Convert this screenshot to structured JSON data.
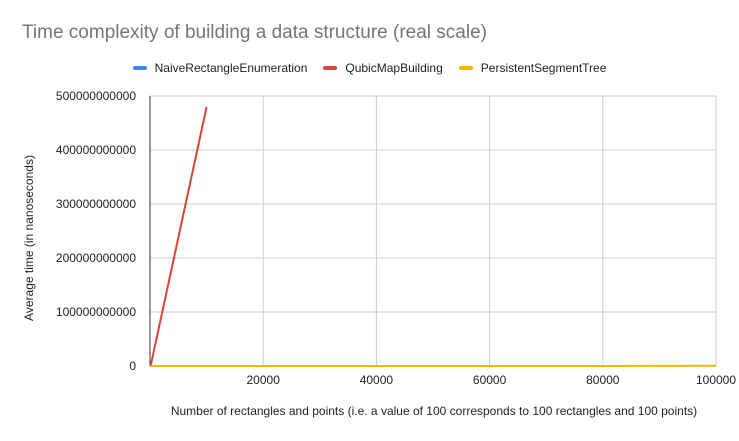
{
  "chart_data": {
    "type": "line",
    "title": "Time complexity of building a data structure (real scale)",
    "xlabel": "Number of rectangles and points (i.e. a value of 100 corresponds to 100 rectangles and 100 points)",
    "ylabel": "Average time (in nanoseconds)",
    "xlim": [
      0,
      100000
    ],
    "ylim": [
      0,
      500000000000
    ],
    "x_ticks": [
      "20000",
      "40000",
      "60000",
      "80000",
      "100000"
    ],
    "y_ticks": [
      "0",
      "100000000000",
      "200000000000",
      "300000000000",
      "400000000000",
      "500000000000"
    ],
    "x_tick_values": [
      20000,
      40000,
      60000,
      80000,
      100000
    ],
    "y_tick_values": [
      0,
      100000000000,
      200000000000,
      300000000000,
      400000000000,
      500000000000
    ],
    "grid": true,
    "legend_position": "top",
    "series": [
      {
        "name": "NaiveRectangleEnumeration",
        "color": "#4285f4",
        "points": [
          [
            100,
            0
          ],
          [
            500,
            0
          ],
          [
            1000,
            0
          ]
        ]
      },
      {
        "name": "QubicMapBuilding",
        "color": "#db4437",
        "points": [
          [
            100,
            0
          ],
          [
            10000,
            480000000000
          ]
        ]
      },
      {
        "name": "PersistentSegmentTree",
        "color": "#f4b400",
        "points": [
          [
            100,
            0
          ],
          [
            10000,
            0
          ],
          [
            20000,
            0
          ],
          [
            40000,
            0
          ],
          [
            60000,
            0
          ],
          [
            80000,
            0
          ],
          [
            100000,
            500000000
          ]
        ]
      }
    ]
  }
}
